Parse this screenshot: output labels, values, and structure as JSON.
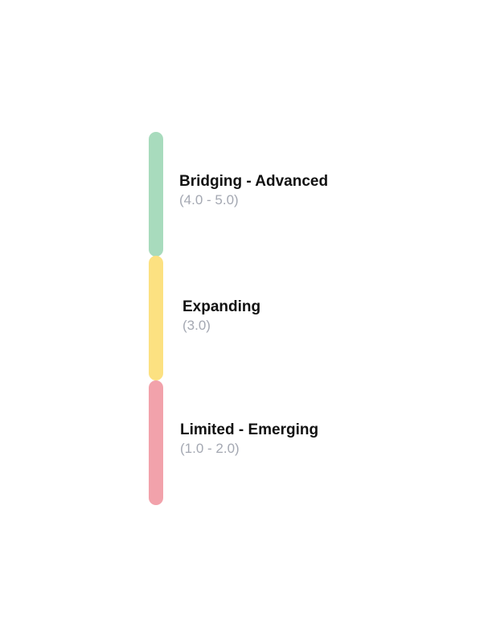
{
  "levels": [
    {
      "title": "Bridging - Advanced",
      "range": "(4.0 - 5.0)",
      "color": "#a8dbbd"
    },
    {
      "title": "Expanding",
      "range": "(3.0)",
      "color": "#fce181"
    },
    {
      "title": "Limited - Emerging",
      "range": "(1.0 - 2.0)",
      "color": "#f2a2ab"
    }
  ]
}
